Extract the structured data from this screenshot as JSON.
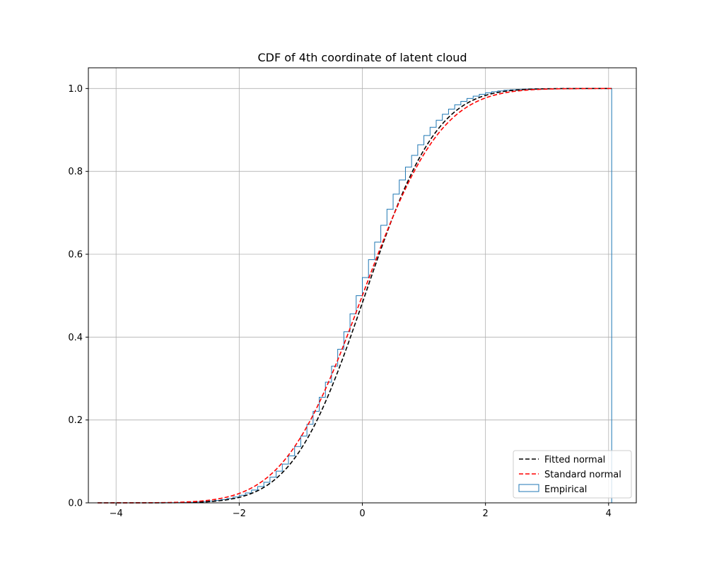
{
  "chart_data": {
    "type": "line",
    "title": "CDF of 4th coordinate of latent cloud",
    "xlabel": "",
    "ylabel": "",
    "xlim": [
      -4.45,
      4.45
    ],
    "ylim": [
      0.0,
      1.05
    ],
    "x_ticks": [
      -4,
      -2,
      0,
      2,
      4
    ],
    "y_ticks": [
      0.0,
      0.2,
      0.4,
      0.6,
      0.8,
      1.0
    ],
    "x_tick_labels": [
      "−4",
      "−2",
      "0",
      "2",
      "4"
    ],
    "y_tick_labels": [
      "0.0",
      "0.2",
      "0.4",
      "0.6",
      "0.8",
      "1.0"
    ],
    "grid": true,
    "legend_position": "bottom-right",
    "colors": {
      "fitted": "#000000",
      "standard": "#ff0000",
      "empirical": "#1f77b4",
      "grid": "#b0b0b0"
    },
    "series": [
      {
        "name": "Fitted normal",
        "kind": "dashed-line",
        "distribution": "normal",
        "mean": 0.04,
        "std": 0.92,
        "x_range": [
          -4.3,
          4.05
        ]
      },
      {
        "name": "Standard normal",
        "kind": "dashed-line",
        "distribution": "normal",
        "mean": 0.0,
        "std": 1.0,
        "x_range": [
          -4.3,
          4.05
        ]
      },
      {
        "name": "Empirical",
        "kind": "step-histogram",
        "bin_edges": [
          -4.3,
          -4.2,
          -4.1,
          -4.0,
          -3.9,
          -3.8,
          -3.7,
          -3.6,
          -3.5,
          -3.4,
          -3.3,
          -3.2,
          -3.1,
          -3.0,
          -2.9,
          -2.8,
          -2.7,
          -2.6,
          -2.5,
          -2.4,
          -2.3,
          -2.2,
          -2.1,
          -2.0,
          -1.9,
          -1.8,
          -1.7,
          -1.6,
          -1.5,
          -1.4,
          -1.3,
          -1.2,
          -1.1,
          -1.0,
          -0.9,
          -0.8,
          -0.7,
          -0.6,
          -0.5,
          -0.4,
          -0.3,
          -0.2,
          -0.1,
          0.0,
          0.1,
          0.2,
          0.3,
          0.4,
          0.5,
          0.6,
          0.7,
          0.8,
          0.9,
          1.0,
          1.1,
          1.2,
          1.3,
          1.4,
          1.5,
          1.6,
          1.7,
          1.8,
          1.9,
          2.0,
          2.1,
          2.2,
          2.3,
          2.4,
          2.5,
          2.6,
          2.7,
          2.8,
          2.9,
          3.0,
          3.1,
          3.2,
          3.3,
          3.4,
          3.5,
          3.6,
          3.7,
          3.8,
          3.9,
          4.0,
          4.05
        ],
        "mean": 0.0,
        "std": 0.91
      }
    ]
  }
}
